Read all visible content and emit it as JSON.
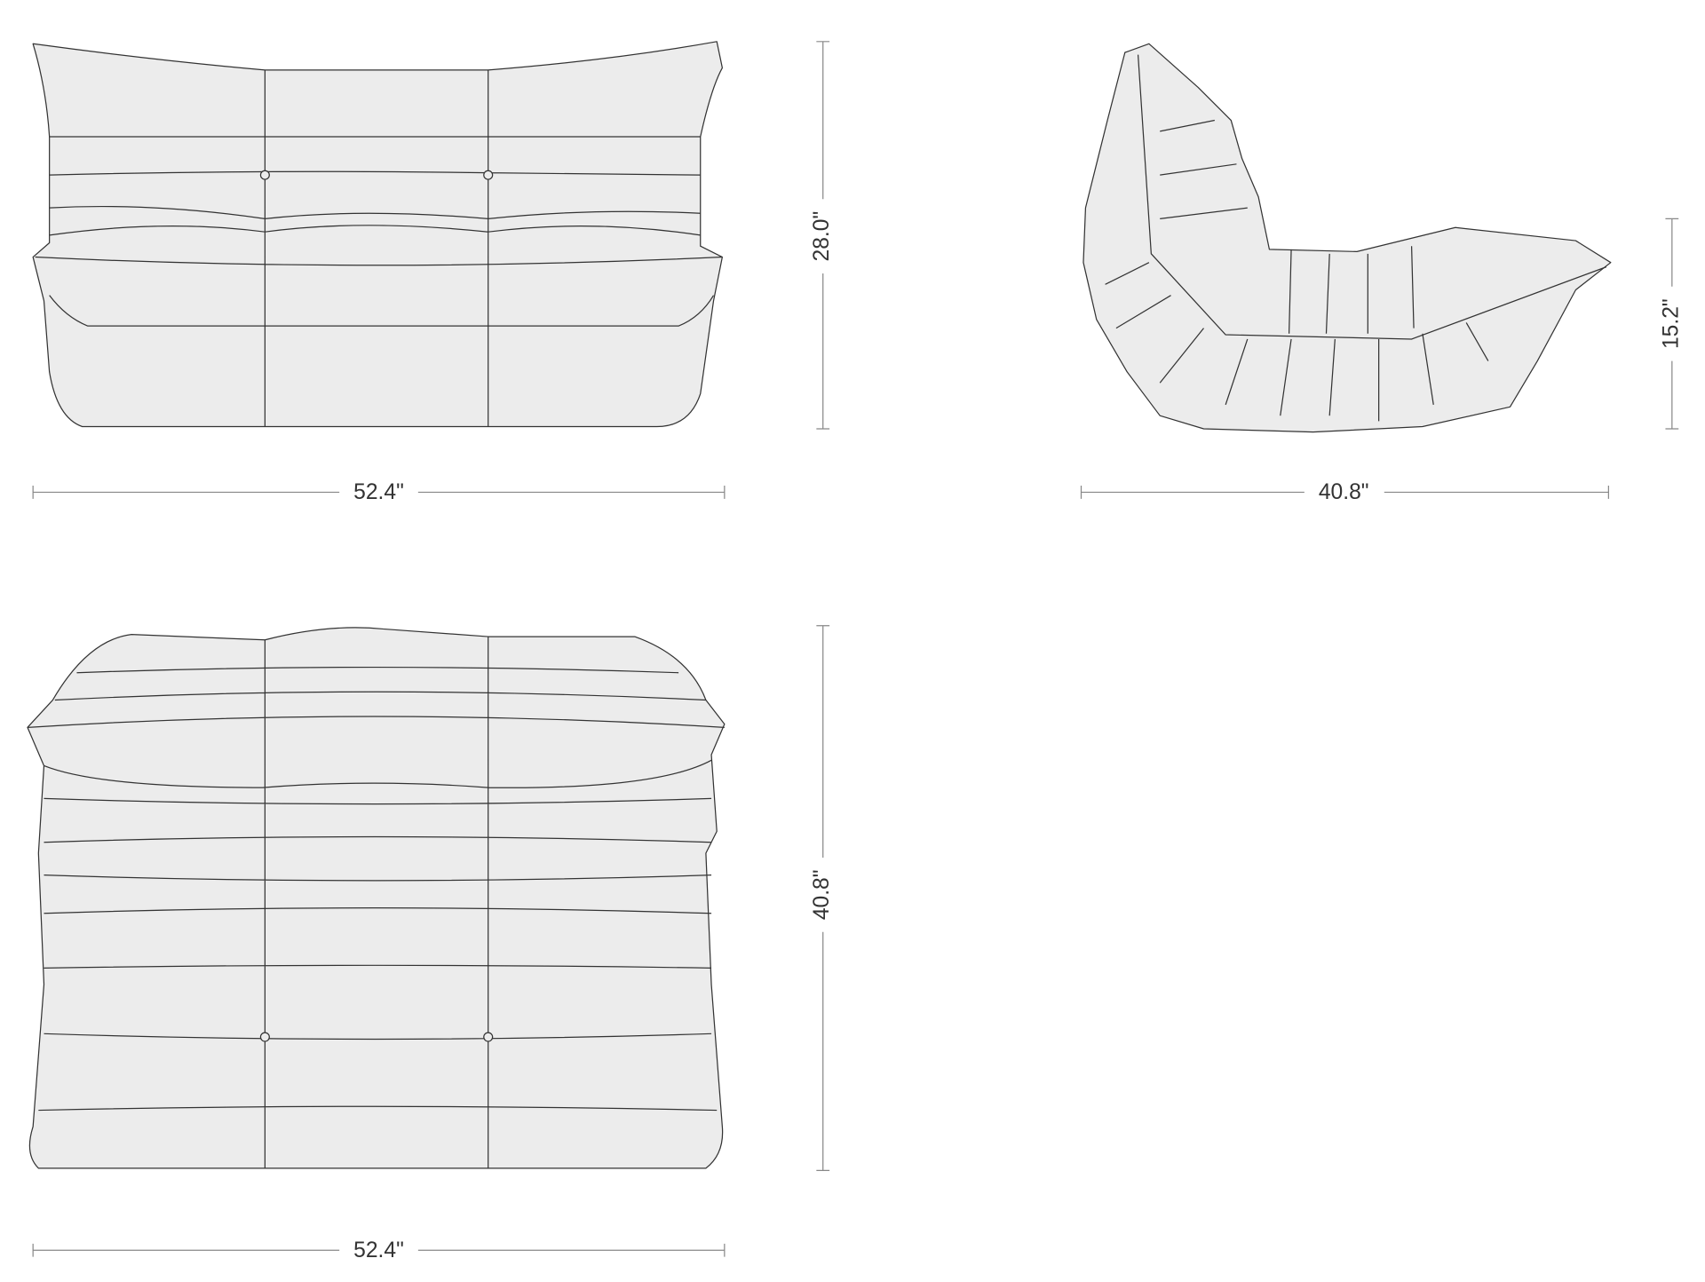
{
  "front_view": {
    "width": "52.4\"",
    "height": "28.0\""
  },
  "side_view": {
    "width": "40.8\"",
    "height": "15.2\""
  },
  "top_view": {
    "width": "52.4\"",
    "depth": "40.8\""
  }
}
